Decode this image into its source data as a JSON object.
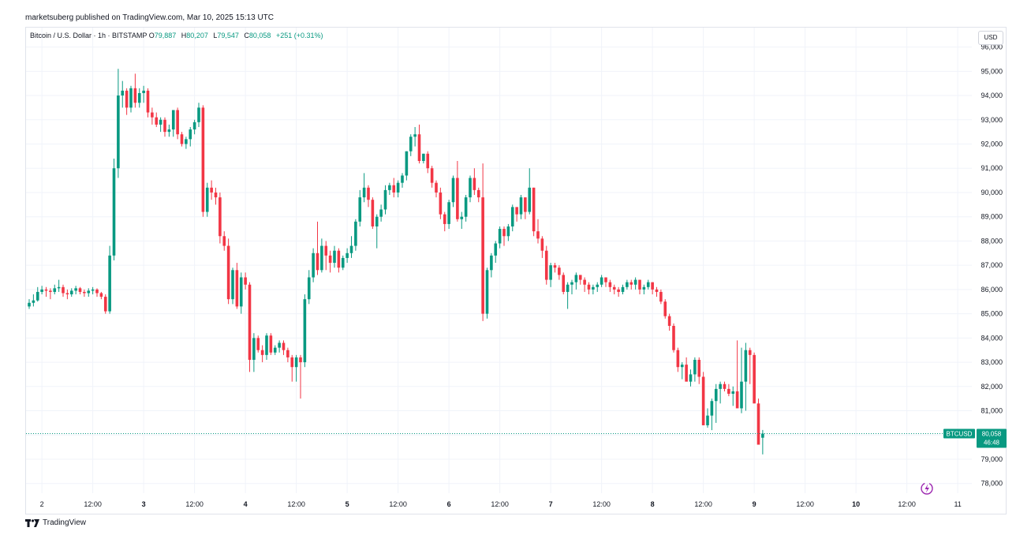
{
  "header": {
    "published": "marketsuberg published on TradingView.com, Mar 10, 2025 15:13 UTC"
  },
  "legend": {
    "symbol": "Bitcoin / U.S. Dollar · 1h · BITSTAMP",
    "o_label": "O",
    "o_value": "79,887",
    "h_label": "H",
    "h_value": "80,207",
    "l_label": "L",
    "l_value": "79,547",
    "c_label": "C",
    "c_value": "80,058",
    "change": "+251 (+0.31%)"
  },
  "currency_button": "USD",
  "last_price": {
    "symbol_tag": "BTCUSD",
    "price": "80,058",
    "countdown": "46:48"
  },
  "brand": {
    "name": "TradingView"
  },
  "colors": {
    "up": "#089981",
    "down": "#f23645",
    "grid": "#f0f3fa",
    "axis_text": "#131722",
    "last_line": "#089981",
    "symbol_tag_bg": "#089981",
    "replay_icon": "#9c27b0"
  },
  "icons": {
    "replay": "lightning-bolt-icon",
    "logo": "tradingview-logo-icon"
  },
  "chart_data": {
    "type": "candlestick",
    "interval": "1h",
    "title": "Bitcoin / U.S. Dollar · 1h · BITSTAMP",
    "ylim": [
      77600,
      96800
    ],
    "y_ticks": [
      96000,
      95000,
      94000,
      93000,
      92000,
      91000,
      90000,
      89000,
      88000,
      87000,
      86000,
      85000,
      84000,
      83000,
      82000,
      81000,
      80000,
      79000,
      78000
    ],
    "y_tick_labels": [
      "96,000",
      "95,000",
      "94,000",
      "93,000",
      "92,000",
      "91,000",
      "90,000",
      "89,000",
      "88,000",
      "87,000",
      "86,000",
      "85,000",
      "84,000",
      "83,000",
      "82,000",
      "81,000",
      "80,000",
      "79,000",
      "78,000"
    ],
    "x_ticks": [
      {
        "label": "2",
        "bar": 3,
        "bold": false
      },
      {
        "label": "12:00",
        "bar": 15,
        "bold": false
      },
      {
        "label": "3",
        "bar": 27,
        "bold": true
      },
      {
        "label": "12:00",
        "bar": 39,
        "bold": false
      },
      {
        "label": "4",
        "bar": 51,
        "bold": true
      },
      {
        "label": "12:00",
        "bar": 63,
        "bold": false
      },
      {
        "label": "5",
        "bar": 75,
        "bold": true
      },
      {
        "label": "12:00",
        "bar": 87,
        "bold": false
      },
      {
        "label": "6",
        "bar": 99,
        "bold": true
      },
      {
        "label": "12:00",
        "bar": 111,
        "bold": false
      },
      {
        "label": "7",
        "bar": 123,
        "bold": true
      },
      {
        "label": "12:00",
        "bar": 135,
        "bold": false
      },
      {
        "label": "8",
        "bar": 147,
        "bold": true
      },
      {
        "label": "12:00",
        "bar": 159,
        "bold": false
      },
      {
        "label": "9",
        "bar": 171,
        "bold": true
      },
      {
        "label": "12:00",
        "bar": 183,
        "bold": false
      },
      {
        "label": "10",
        "bar": 195,
        "bold": true
      },
      {
        "label": "12:00",
        "bar": 207,
        "bold": false
      },
      {
        "label": "11",
        "bar": 219,
        "bold": false
      }
    ],
    "last_price": 80058,
    "closes": [
      85450,
      85550,
      85900,
      86000,
      85950,
      85900,
      86050,
      86100,
      85850,
      85800,
      85950,
      86050,
      85900,
      85850,
      85950,
      86000,
      85850,
      85700,
      85100,
      87400,
      91000,
      94000,
      94200,
      93500,
      94300,
      93700,
      94100,
      94200,
      93300,
      93100,
      92800,
      93000,
      92500,
      92600,
      93400,
      92400,
      92000,
      92200,
      92600,
      92900,
      93500,
      89200,
      90200,
      90000,
      89800,
      88200,
      87800,
      85600,
      86800,
      85300,
      86500,
      86200,
      83100,
      84000,
      83500,
      83300,
      84100,
      83400,
      83600,
      83800,
      83500,
      83200,
      82800,
      83200,
      83000,
      85600,
      86500,
      87500,
      86800,
      87800,
      87400,
      87100,
      87600,
      86900,
      87300,
      87500,
      87800,
      88800,
      89800,
      90200,
      89700,
      88600,
      89000,
      89300,
      90100,
      90300,
      90000,
      90400,
      90700,
      91700,
      92300,
      92400,
      91300,
      91600,
      91000,
      90400,
      90000,
      89100,
      88700,
      89600,
      90600,
      88900,
      89000,
      89800,
      90600,
      90100,
      89800,
      85000,
      86800,
      87400,
      87900,
      88500,
      88200,
      88600,
      89400,
      89100,
      89800,
      89200,
      90200,
      88400,
      88100,
      87600,
      86400,
      87000,
      86900,
      86600,
      85900,
      86200,
      86300,
      86600,
      86400,
      86200,
      86000,
      86100,
      86200,
      86500,
      86300,
      86100,
      86000,
      85900,
      86100,
      86300,
      86200,
      86400,
      86000,
      86100,
      86300,
      86000,
      85900,
      85500,
      84900,
      84500,
      83500,
      82800,
      82900,
      82200,
      82500,
      83100,
      82400,
      80400,
      80800,
      81400,
      81900,
      82100,
      81900,
      81700,
      81800,
      81100,
      82200,
      83500,
      83300,
      81300,
      79600,
      80058
    ],
    "opens": [
      85300,
      85450,
      85550,
      85900,
      86000,
      85950,
      85900,
      86050,
      86100,
      85850,
      85800,
      85950,
      86050,
      85900,
      85850,
      85950,
      86000,
      85850,
      85700,
      85100,
      87400,
      91000,
      94000,
      94200,
      93500,
      94300,
      93700,
      94100,
      94200,
      93300,
      93100,
      92800,
      93000,
      92500,
      92600,
      93400,
      92400,
      92000,
      92200,
      92600,
      92900,
      93500,
      89200,
      90200,
      90000,
      89800,
      88200,
      87800,
      85600,
      86800,
      85300,
      86500,
      86200,
      83100,
      84000,
      83500,
      83300,
      84100,
      83400,
      83600,
      83800,
      83500,
      83200,
      82800,
      83200,
      83000,
      85600,
      86500,
      87500,
      86800,
      87800,
      87400,
      87100,
      87600,
      86900,
      87300,
      87500,
      87800,
      88800,
      89800,
      90200,
      89700,
      88600,
      89000,
      89300,
      90100,
      90300,
      90000,
      90400,
      90700,
      91700,
      92300,
      92400,
      91300,
      91600,
      91000,
      90400,
      90000,
      89100,
      88700,
      89600,
      90600,
      88900,
      89000,
      89800,
      90600,
      90100,
      89800,
      85000,
      86800,
      87400,
      87900,
      88500,
      88200,
      88600,
      89400,
      89100,
      89800,
      89200,
      90200,
      88400,
      88100,
      87600,
      86400,
      87000,
      86900,
      86600,
      85900,
      86200,
      86300,
      86600,
      86400,
      86200,
      86000,
      86100,
      86200,
      86500,
      86300,
      86100,
      86000,
      85900,
      86100,
      86300,
      86200,
      86400,
      86000,
      86100,
      86300,
      86000,
      85900,
      85500,
      84900,
      84500,
      83500,
      82800,
      82900,
      82200,
      82500,
      83100,
      82400,
      80400,
      80800,
      81400,
      81900,
      82100,
      81900,
      81700,
      81800,
      81100,
      82200,
      83500,
      83300,
      81300,
      79887
    ],
    "highs": [
      85600,
      85800,
      86100,
      86150,
      86100,
      86050,
      86200,
      86400,
      86200,
      86000,
      86050,
      86150,
      86100,
      86000,
      86050,
      86100,
      86050,
      85900,
      85800,
      87800,
      91400,
      95100,
      94600,
      94300,
      94400,
      94900,
      94300,
      94400,
      94300,
      93500,
      93300,
      93100,
      93100,
      92800,
      93000,
      93500,
      92500,
      92300,
      92700,
      93000,
      93700,
      93600,
      90400,
      90500,
      90200,
      90000,
      88400,
      88100,
      86900,
      87100,
      86700,
      86700,
      86300,
      84200,
      84100,
      83700,
      84200,
      84200,
      83700,
      83900,
      83900,
      83600,
      83300,
      83300,
      83300,
      85800,
      86800,
      87700,
      88800,
      88100,
      88000,
      87600,
      87800,
      87700,
      87400,
      87700,
      88200,
      88900,
      90100,
      90800,
      90300,
      89800,
      89100,
      89500,
      90300,
      90400,
      90600,
      90500,
      90800,
      91700,
      92400,
      92700,
      92800,
      91600,
      91700,
      91100,
      90500,
      90200,
      89200,
      89700,
      90700,
      91300,
      89200,
      89900,
      90700,
      91000,
      90200,
      91200,
      86900,
      87500,
      88000,
      88600,
      88600,
      88700,
      89500,
      89400,
      89900,
      89400,
      91000,
      90200,
      88900,
      88200,
      87800,
      87100,
      87100,
      87000,
      86700,
      86300,
      86400,
      86700,
      86600,
      86500,
      86300,
      86200,
      86300,
      86600,
      86500,
      86400,
      86200,
      86100,
      86200,
      86400,
      86400,
      86500,
      86400,
      86200,
      86400,
      86300,
      86100,
      86000,
      85600,
      85000,
      84600,
      83600,
      83000,
      83200,
      82700,
      83200,
      83200,
      82600,
      81100,
      81500,
      82100,
      82200,
      82200,
      82100,
      82000,
      83900,
      83600,
      83800,
      83600,
      83400,
      81500,
      80207
    ],
    "lows": [
      85200,
      85300,
      85500,
      85800,
      85700,
      85600,
      85800,
      85900,
      85700,
      85600,
      85700,
      85800,
      85800,
      85700,
      85700,
      85800,
      85700,
      85600,
      85000,
      85000,
      87200,
      90600,
      93500,
      93200,
      93300,
      93500,
      93500,
      93700,
      93100,
      92800,
      92700,
      92500,
      92300,
      92300,
      92300,
      92200,
      91900,
      91800,
      91900,
      92400,
      92700,
      89000,
      89000,
      89700,
      89500,
      87900,
      87600,
      85400,
      85400,
      85200,
      85000,
      86000,
      82600,
      82600,
      83400,
      83000,
      83100,
      83300,
      83300,
      83400,
      83300,
      83000,
      82200,
      82200,
      81500,
      82800,
      85400,
      86300,
      86600,
      86700,
      86800,
      86700,
      86900,
      86700,
      86800,
      87100,
      87300,
      87600,
      88600,
      89600,
      89400,
      88500,
      87700,
      88800,
      89100,
      89900,
      89800,
      89800,
      90200,
      90500,
      91500,
      91900,
      91200,
      91200,
      90800,
      90200,
      89800,
      88900,
      88400,
      88500,
      89400,
      88800,
      88500,
      88800,
      89600,
      89900,
      89600,
      84700,
      84800,
      86500,
      87100,
      87700,
      87800,
      88000,
      88400,
      88800,
      88900,
      88900,
      89100,
      88200,
      87900,
      87300,
      86200,
      86100,
      86700,
      86400,
      85800,
      85200,
      85800,
      86000,
      86200,
      85900,
      85800,
      85800,
      85900,
      86100,
      86100,
      85900,
      85800,
      85700,
      85800,
      86000,
      86000,
      86000,
      85800,
      85800,
      86000,
      85800,
      85700,
      85400,
      84800,
      84300,
      83400,
      82600,
      82300,
      82600,
      82000,
      82200,
      82100,
      82200,
      80300,
      80200,
      80500,
      81300,
      81800,
      81600,
      81200,
      81200,
      80900,
      81000,
      82100,
      83100,
      81100,
      79200,
      79547
    ]
  }
}
